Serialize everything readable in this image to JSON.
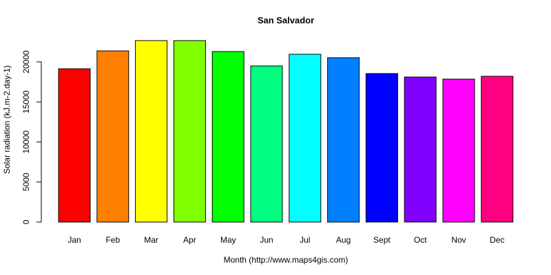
{
  "chart_data": {
    "type": "bar",
    "title": "San Salvador",
    "xlabel": "Month (http://www.maps4gis.com)",
    "ylabel": "Solar radiation (kJ.m-2.day-1)",
    "categories": [
      "Jan",
      "Feb",
      "Mar",
      "Apr",
      "May",
      "Jun",
      "Jul",
      "Aug",
      "Sept",
      "Oct",
      "Nov",
      "Dec"
    ],
    "values": [
      19140,
      21370,
      22660,
      22660,
      21290,
      19490,
      20950,
      20520,
      18540,
      18110,
      17850,
      18200
    ],
    "colors": [
      "#FF0000",
      "#FF8000",
      "#FFFF00",
      "#80FF00",
      "#00FF00",
      "#00FF80",
      "#00FFFF",
      "#0080FF",
      "#0000FF",
      "#8000FF",
      "#FF00FF",
      "#FF0080"
    ],
    "yticks": [
      0,
      5000,
      10000,
      15000,
      20000
    ],
    "ylim": [
      0,
      22660
    ],
    "grid": false,
    "legend": null
  }
}
